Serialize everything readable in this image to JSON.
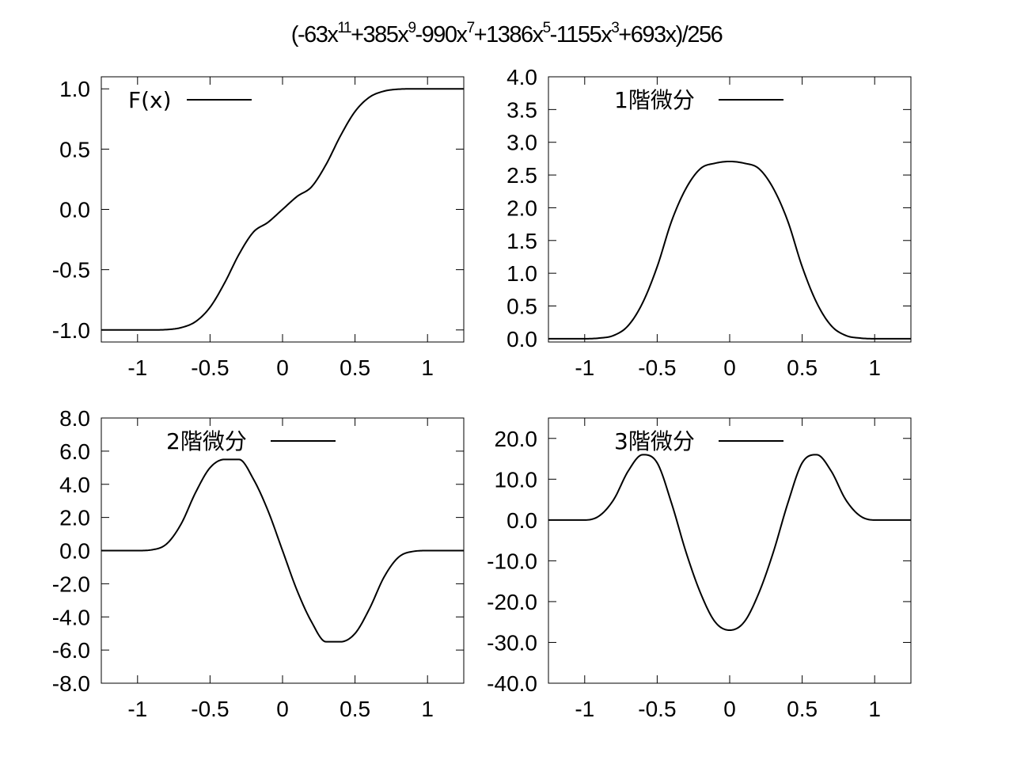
{
  "figure": {
    "title_parts": [
      {
        "text": "(-63x"
      },
      {
        "sup": "11"
      },
      {
        "text": "+385x"
      },
      {
        "sup": "9"
      },
      {
        "text": "-990x"
      },
      {
        "sup": "7"
      },
      {
        "text": "+1386x"
      },
      {
        "sup": "5"
      },
      {
        "text": "-1155x"
      },
      {
        "sup": "3"
      },
      {
        "text": "+693x)/256"
      }
    ]
  },
  "chart_data": [
    {
      "type": "line",
      "name": "F(x)",
      "legend": "F(x)",
      "legend_position": "top-left",
      "xlim": [
        -1.25,
        1.25
      ],
      "ylim": [
        -1.1,
        1.1
      ],
      "xticks": [
        -1,
        -0.5,
        0,
        0.5,
        1
      ],
      "xtick_labels": [
        "-1",
        "-0.5",
        "0",
        "0.5",
        "1"
      ],
      "yticks": [
        -1.0,
        -0.5,
        0.0,
        0.5,
        1.0
      ],
      "ytick_labels": [
        "-1.0",
        "-0.5",
        "0.0",
        "0.5",
        "1.0"
      ],
      "grid": false,
      "x": [
        -1.25,
        -1.0,
        -0.9,
        -0.8,
        -0.7,
        -0.6,
        -0.5,
        -0.4,
        -0.3,
        -0.2,
        -0.1,
        0.0,
        0.1,
        0.2,
        0.3,
        0.4,
        0.5,
        0.6,
        0.7,
        0.8,
        0.9,
        1.0,
        1.25
      ],
      "y": [
        -1.0,
        -1.0,
        -1.0,
        -0.997,
        -0.981,
        -0.931,
        -0.812,
        -0.611,
        -0.372,
        -0.187,
        -0.107,
        0.0,
        0.107,
        0.187,
        0.372,
        0.611,
        0.812,
        0.931,
        0.981,
        0.997,
        1.0,
        1.0,
        1.0
      ]
    },
    {
      "type": "line",
      "name": "1階微分",
      "legend": "1階微分",
      "legend_position": "top-center",
      "xlim": [
        -1.25,
        1.25
      ],
      "ylim": [
        -0.05,
        4.0
      ],
      "xticks": [
        -1,
        -0.5,
        0,
        0.5,
        1
      ],
      "xtick_labels": [
        "-1",
        "-0.5",
        "0",
        "0.5",
        "1"
      ],
      "yticks": [
        0.0,
        0.5,
        1.0,
        1.5,
        2.0,
        2.5,
        3.0,
        3.5,
        4.0
      ],
      "ytick_labels": [
        "0.0",
        "0.5",
        "1.0",
        "1.5",
        "2.0",
        "2.5",
        "3.0",
        "3.5",
        "4.0"
      ],
      "grid": false,
      "x": [
        -1.25,
        -1.0,
        -0.9,
        -0.8,
        -0.7,
        -0.6,
        -0.5,
        -0.4,
        -0.3,
        -0.2,
        -0.1,
        0.0,
        0.1,
        0.2,
        0.3,
        0.4,
        0.5,
        0.6,
        0.7,
        0.8,
        0.9,
        1.0,
        1.25
      ],
      "y": [
        0.0,
        0.0,
        0.01,
        0.05,
        0.2,
        0.55,
        1.1,
        1.8,
        2.3,
        2.6,
        2.68,
        2.707,
        2.68,
        2.6,
        2.3,
        1.8,
        1.1,
        0.55,
        0.2,
        0.05,
        0.01,
        0.0,
        0.0
      ]
    },
    {
      "type": "line",
      "name": "2階微分",
      "legend": "2階微分",
      "legend_position": "top-center",
      "xlim": [
        -1.25,
        1.25
      ],
      "ylim": [
        -8.0,
        8.0
      ],
      "xticks": [
        -1,
        -0.5,
        0,
        0.5,
        1
      ],
      "xtick_labels": [
        "-1",
        "-0.5",
        "0",
        "0.5",
        "1"
      ],
      "yticks": [
        -8.0,
        -6.0,
        -4.0,
        -2.0,
        0.0,
        2.0,
        4.0,
        6.0,
        8.0
      ],
      "ytick_labels": [
        "-8.0",
        "-6.0",
        "-4.0",
        "-2.0",
        "0.0",
        "2.0",
        "4.0",
        "6.0",
        "8.0"
      ],
      "grid": false,
      "x": [
        -1.25,
        -1.0,
        -0.9,
        -0.8,
        -0.7,
        -0.6,
        -0.5,
        -0.4,
        -0.3,
        -0.2,
        -0.1,
        0.0,
        0.1,
        0.2,
        0.3,
        0.4,
        0.5,
        0.6,
        0.7,
        0.8,
        0.9,
        1.0,
        1.25
      ],
      "y": [
        0.0,
        0.0,
        0.05,
        0.4,
        1.6,
        3.5,
        5.0,
        5.5,
        5.5,
        4.3,
        2.4,
        0.0,
        -2.4,
        -4.3,
        -5.5,
        -5.5,
        -5.0,
        -3.5,
        -1.6,
        -0.4,
        -0.05,
        0.0,
        0.0
      ]
    },
    {
      "type": "line",
      "name": "3階微分",
      "legend": "3階微分",
      "legend_position": "top-center",
      "xlim": [
        -1.25,
        1.25
      ],
      "ylim": [
        -40.0,
        25.0
      ],
      "xticks": [
        -1,
        -0.5,
        0,
        0.5,
        1
      ],
      "xtick_labels": [
        "-1",
        "-0.5",
        "0",
        "0.5",
        "1"
      ],
      "yticks": [
        -40.0,
        -30.0,
        -20.0,
        -10.0,
        0.0,
        10.0,
        20.0
      ],
      "ytick_labels": [
        "-40.0",
        "-30.0",
        "-20.0",
        "-10.0",
        "0.0",
        "10.0",
        "20.0"
      ],
      "grid": false,
      "x": [
        -1.25,
        -1.0,
        -0.9,
        -0.8,
        -0.7,
        -0.6,
        -0.5,
        -0.4,
        -0.3,
        -0.2,
        -0.1,
        0.0,
        0.1,
        0.2,
        0.3,
        0.4,
        0.5,
        0.6,
        0.7,
        0.8,
        0.9,
        1.0,
        1.25
      ],
      "y": [
        0.0,
        0.0,
        1.0,
        5.0,
        12.0,
        16.0,
        14.0,
        4.0,
        -8.0,
        -18.0,
        -25.0,
        -27.0,
        -25.0,
        -18.0,
        -8.0,
        4.0,
        14.0,
        16.0,
        12.0,
        5.0,
        1.0,
        0.0,
        0.0
      ]
    }
  ]
}
